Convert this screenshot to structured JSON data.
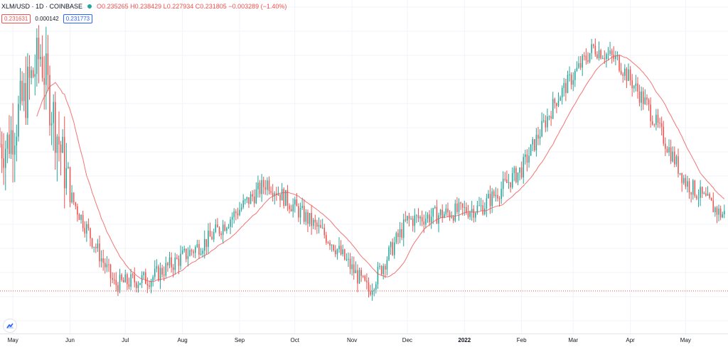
{
  "legend": {
    "symbol": "XLM/USD · 1D · COINBASE",
    "open_label": "O",
    "open": "0.235265",
    "high_label": "H",
    "high": "0.238429",
    "low_label": "L",
    "low": "0.227934",
    "close_label": "C",
    "close": "0.231805",
    "change": "−0.003289 (−1.40%)",
    "indicator_value_1": "0.231631",
    "indicator_value_2": "0.000142",
    "indicator_value_3": "0.231773"
  },
  "colors": {
    "up": "#26a69a",
    "down": "#ef5350",
    "ma": "#ef5350",
    "price_line": "#ef5350",
    "grid": "#f0f3fa",
    "logo": "#2962ff"
  },
  "icons": {
    "logo": "tradingview-cloud-icon"
  },
  "chart_data": {
    "type": "candlestick",
    "title": "",
    "x_tick_labels": [
      "May",
      "Jun",
      "Jul",
      "Aug",
      "Sep",
      "Oct",
      "Nov",
      "Dec",
      "2022",
      "Feb",
      "Mar",
      "Apr",
      "May"
    ],
    "bold_tick": "2022",
    "grid": true,
    "price_line_value": 0.0,
    "trend_anchors": {
      "x": [
        "2021-04-28",
        "2021-05-16",
        "2021-06-01",
        "2021-06-25",
        "2021-07-15",
        "2021-08-15",
        "2021-09-16",
        "2021-10-20",
        "2021-11-10",
        "2021-12-01",
        "2021-12-20",
        "2022-01-10",
        "2022-02-01",
        "2022-02-20",
        "2022-03-12",
        "2022-03-25",
        "2022-04-10",
        "2022-05-01",
        "2022-05-20"
      ],
      "y": [
        0.48,
        0.62,
        0.4,
        0.26,
        0.27,
        0.33,
        0.42,
        0.33,
        0.25,
        0.36,
        0.37,
        0.38,
        0.44,
        0.55,
        0.63,
        0.61,
        0.54,
        0.42,
        0.37
      ]
    },
    "series": []
  }
}
